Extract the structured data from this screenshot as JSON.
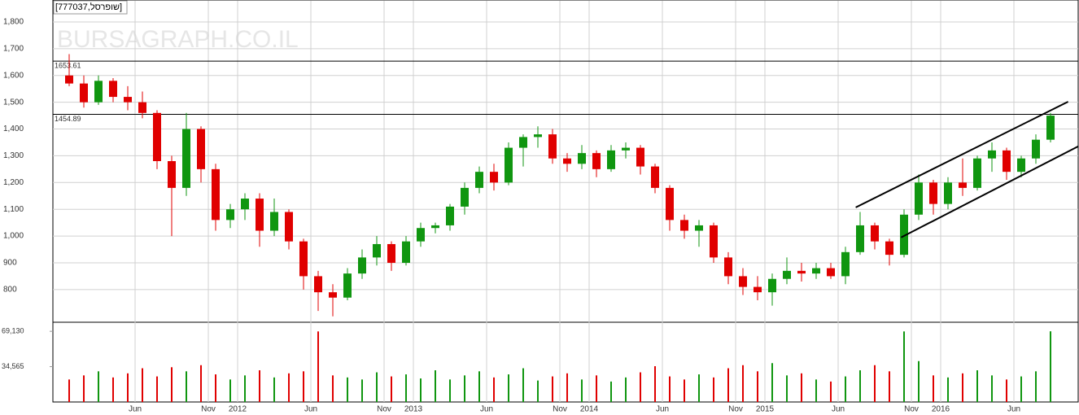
{
  "chart_data": {
    "type": "candlestick",
    "title": "[777037,שופרסל]",
    "watermark": "BURSAGRAPH.CO.IL",
    "categories": [
      null,
      null,
      null,
      null,
      null,
      "Jun",
      null,
      null,
      null,
      null,
      "Nov",
      null,
      "2012",
      null,
      null,
      null,
      null,
      "Jun",
      null,
      null,
      null,
      null,
      "Nov",
      null,
      "2013",
      null,
      null,
      null,
      null,
      "Jun",
      null,
      null,
      null,
      null,
      "Nov",
      null,
      "2014",
      null,
      null,
      null,
      null,
      "Jun",
      null,
      null,
      null,
      null,
      "Nov",
      null,
      "2015",
      null,
      null,
      null,
      null,
      "Jun",
      null,
      null,
      null,
      null,
      "Nov",
      null,
      "2016",
      null,
      null,
      null,
      null,
      "Jun",
      null,
      null
    ],
    "open": [
      1600,
      1570,
      1500,
      1580,
      1520,
      1500,
      1460,
      1280,
      1180,
      1400,
      1250,
      1060,
      1100,
      1140,
      1020,
      1090,
      980,
      850,
      790,
      770,
      860,
      920,
      970,
      900,
      980,
      1030,
      1040,
      1110,
      1180,
      1240,
      1200,
      1330,
      1370,
      1380,
      1290,
      1270,
      1310,
      1250,
      1320,
      1330,
      1260,
      1180,
      1060,
      1020,
      1040,
      920,
      850,
      810,
      790,
      840,
      870,
      860,
      880,
      850,
      940,
      1040,
      980,
      930,
      1080,
      1200,
      1120,
      1200,
      1180,
      1290,
      1320,
      1240,
      1290,
      1360
    ],
    "high": [
      1680,
      1600,
      1600,
      1590,
      1560,
      1540,
      1470,
      1300,
      1460,
      1410,
      1270,
      1120,
      1160,
      1160,
      1140,
      1100,
      990,
      870,
      820,
      880,
      950,
      1000,
      980,
      1000,
      1050,
      1050,
      1120,
      1200,
      1260,
      1270,
      1350,
      1380,
      1410,
      1400,
      1310,
      1340,
      1320,
      1340,
      1350,
      1340,
      1270,
      1190,
      1080,
      1060,
      1050,
      940,
      880,
      850,
      860,
      920,
      900,
      900,
      900,
      960,
      1090,
      1050,
      990,
      1100,
      1230,
      1210,
      1220,
      1290,
      1300,
      1350,
      1330,
      1300,
      1380,
      1460
    ],
    "low": [
      1560,
      1480,
      1490,
      1500,
      1470,
      1440,
      1250,
      1000,
      1150,
      1200,
      1020,
      1030,
      1060,
      960,
      1000,
      950,
      800,
      720,
      700,
      760,
      840,
      890,
      870,
      890,
      960,
      1010,
      1020,
      1080,
      1160,
      1170,
      1190,
      1260,
      1330,
      1270,
      1240,
      1250,
      1220,
      1240,
      1290,
      1230,
      1160,
      1020,
      990,
      960,
      900,
      820,
      780,
      760,
      740,
      820,
      830,
      840,
      840,
      820,
      930,
      950,
      890,
      920,
      1060,
      1080,
      1100,
      1150,
      1170,
      1240,
      1210,
      1220,
      1270,
      1350
    ],
    "close": [
      1570,
      1500,
      1580,
      1520,
      1500,
      1460,
      1280,
      1180,
      1400,
      1250,
      1060,
      1100,
      1140,
      1020,
      1090,
      980,
      850,
      790,
      770,
      860,
      920,
      970,
      900,
      980,
      1030,
      1040,
      1110,
      1180,
      1240,
      1200,
      1330,
      1370,
      1380,
      1290,
      1270,
      1310,
      1250,
      1320,
      1330,
      1260,
      1180,
      1060,
      1020,
      1040,
      920,
      850,
      810,
      790,
      840,
      870,
      860,
      880,
      850,
      940,
      1040,
      980,
      930,
      1080,
      1200,
      1120,
      1200,
      1180,
      1290,
      1320,
      1240,
      1290,
      1360,
      1450
    ],
    "volume": [
      22000,
      26000,
      30000,
      24000,
      28000,
      33000,
      25000,
      34000,
      30000,
      36000,
      27000,
      22000,
      26000,
      31000,
      24000,
      28000,
      30000,
      69000,
      26000,
      24000,
      22000,
      29000,
      25000,
      27000,
      23000,
      31000,
      22000,
      26000,
      30000,
      24000,
      27000,
      33000,
      21000,
      25000,
      28000,
      22000,
      26000,
      20000,
      24000,
      29000,
      35000,
      25000,
      22000,
      27000,
      24000,
      33000,
      36000,
      30000,
      38000,
      26000,
      28000,
      22000,
      20000,
      25000,
      31000,
      36000,
      30000,
      69000,
      40000,
      26000,
      24000,
      28000,
      31000,
      26000,
      22000,
      25000,
      30000,
      69130
    ],
    "up_color": "#109610",
    "down_color": "#e00000",
    "ylim": [
      678,
      1882
    ],
    "yticks": [
      800,
      900,
      {
        "value": 1000,
        "label": "1,000"
      },
      {
        "value": 1100,
        "label": "1,100"
      },
      {
        "value": 1200,
        "label": "1,200"
      },
      {
        "value": 1300,
        "label": "1,300"
      },
      {
        "value": 1400,
        "label": "1,400"
      },
      {
        "value": 1500,
        "label": "1,500"
      },
      {
        "value": 1600,
        "label": "1,600"
      },
      {
        "value": 1700,
        "label": "1,700"
      },
      {
        "value": 1800,
        "label": "1,800"
      }
    ],
    "volume_ylim": [
      0,
      78000
    ],
    "volume_yticks": [
      {
        "value": 34565,
        "label": "34,565"
      },
      {
        "value": 69130,
        "label": "69,130"
      }
    ],
    "levels": [
      1653.61,
      1454.89
    ],
    "trendlines": [
      {
        "x": [
          53.7,
          68.2
        ],
        "y": [
          1107,
          1502
        ]
      },
      {
        "x": [
          56.8,
          68.9
        ],
        "y": [
          995,
          1335
        ]
      }
    ],
    "grid": true
  }
}
